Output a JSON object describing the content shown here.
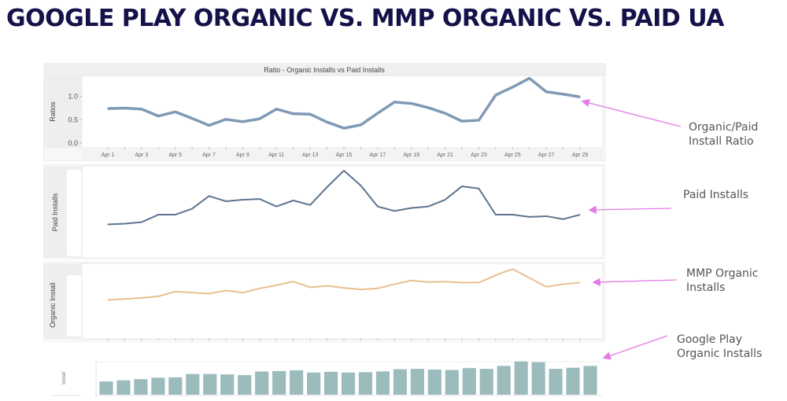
{
  "slide": {
    "title": "GOOGLE PLAY ORGANIC VS. MMP ORGANIC VS. PAID UA",
    "accent_color": "#15124a",
    "arrow_color": "#e27ae6"
  },
  "annotations": [
    {
      "line1": "Organic/Paid",
      "line2": "Install Ratio"
    },
    {
      "line1": "Paid Installs",
      "line2": ""
    },
    {
      "line1": "MMP Organic",
      "line2": "Installs"
    },
    {
      "line1": "Google Play",
      "line2": "Organic Installs"
    }
  ],
  "chart_data": [
    {
      "type": "line",
      "title": "Ratio - Organic Installs vs Paid Installs",
      "ylabel": "Ratios",
      "xlabel": "",
      "ylim": [
        0,
        1.45
      ],
      "yticks": [
        "0.0",
        "0.5",
        "1.0"
      ],
      "ytick_values": [
        0,
        0.5,
        1.0
      ],
      "x": [
        "Apr 1",
        "Apr 2",
        "Apr 3",
        "Apr 4",
        "Apr 5",
        "Apr 6",
        "Apr 7",
        "Apr 8",
        "Apr 9",
        "Apr 10",
        "Apr 11",
        "Apr 12",
        "Apr 13",
        "Apr 14",
        "Apr 15",
        "Apr 16",
        "Apr 17",
        "Apr 18",
        "Apr 19",
        "Apr 20",
        "Apr 21",
        "Apr 22",
        "Apr 23",
        "Apr 24",
        "Apr 25",
        "Apr 26",
        "Apr 27",
        "Apr 28",
        "Apr 29"
      ],
      "xtick_labels": [
        "Apr 1",
        "Apr 3",
        "Apr 5",
        "Apr 7",
        "Apr 9",
        "Apr 11",
        "Apr 13",
        "Apr 15",
        "Apr 17",
        "Apr 19",
        "Apr 21",
        "Apr 23",
        "Apr 25",
        "Apr 27",
        "Apr 29"
      ],
      "series": [
        {
          "name": "Ratio",
          "color": "#7f9ab5",
          "values": [
            0.74,
            0.75,
            0.73,
            0.58,
            0.67,
            0.53,
            0.38,
            0.51,
            0.46,
            0.52,
            0.73,
            0.63,
            0.62,
            0.45,
            0.32,
            0.39,
            0.64,
            0.88,
            0.85,
            0.76,
            0.64,
            0.47,
            0.49,
            1.03,
            1.2,
            1.39,
            1.1,
            1.05,
            0.99
          ]
        }
      ],
      "grid": false
    },
    {
      "type": "line",
      "title": "",
      "ylabel": "Paid Installs",
      "ylim": [
        0,
        100
      ],
      "x": [
        "Apr 1",
        "Apr 2",
        "Apr 3",
        "Apr 4",
        "Apr 5",
        "Apr 6",
        "Apr 7",
        "Apr 8",
        "Apr 9",
        "Apr 10",
        "Apr 11",
        "Apr 12",
        "Apr 13",
        "Apr 14",
        "Apr 15",
        "Apr 16",
        "Apr 17",
        "Apr 18",
        "Apr 19",
        "Apr 20",
        "Apr 21",
        "Apr 22",
        "Apr 23",
        "Apr 24",
        "Apr 25",
        "Apr 26",
        "Apr 27",
        "Apr 28",
        "Apr 29"
      ],
      "series": [
        {
          "name": "Paid Installs",
          "color": "#5d7590",
          "values": [
            28,
            29,
            31,
            41,
            41,
            49,
            66,
            59,
            61,
            62,
            52,
            60,
            54,
            78,
            100,
            80,
            52,
            46,
            50,
            52,
            61,
            79,
            76,
            41,
            41,
            38,
            39,
            35,
            41
          ]
        }
      ],
      "grid": false
    },
    {
      "type": "line",
      "title": "",
      "ylabel": "Organic Install",
      "ylim": [
        0,
        100
      ],
      "x": [
        "Apr 1",
        "Apr 2",
        "Apr 3",
        "Apr 4",
        "Apr 5",
        "Apr 6",
        "Apr 7",
        "Apr 8",
        "Apr 9",
        "Apr 10",
        "Apr 11",
        "Apr 12",
        "Apr 13",
        "Apr 14",
        "Apr 15",
        "Apr 16",
        "Apr 17",
        "Apr 18",
        "Apr 19",
        "Apr 20",
        "Apr 21",
        "Apr 22",
        "Apr 23",
        "Apr 24",
        "Apr 25",
        "Apr 26",
        "Apr 27",
        "Apr 28",
        "Apr 29"
      ],
      "series": [
        {
          "name": "MMP Organic Installs",
          "color": "#e8c08e",
          "values": [
            38,
            40,
            42,
            45,
            54,
            52,
            50,
            56,
            52,
            60,
            66,
            73,
            62,
            65,
            61,
            58,
            60,
            68,
            75,
            72,
            73,
            71,
            71,
            85,
            97,
            80,
            63,
            68,
            71
          ]
        }
      ],
      "grid": false
    },
    {
      "type": "bar",
      "title": "",
      "ylabel": "Install",
      "ylim": [
        0,
        100
      ],
      "categories": [
        "Apr 1",
        "Apr 2",
        "Apr 3",
        "Apr 4",
        "Apr 5",
        "Apr 6",
        "Apr 7",
        "Apr 8",
        "Apr 9",
        "Apr 10",
        "Apr 11",
        "Apr 12",
        "Apr 13",
        "Apr 14",
        "Apr 15",
        "Apr 16",
        "Apr 17",
        "Apr 18",
        "Apr 19",
        "Apr 20",
        "Apr 21",
        "Apr 22",
        "Apr 23",
        "Apr 24",
        "Apr 25",
        "Apr 26",
        "Apr 27",
        "Apr 28",
        "Apr 29"
      ],
      "series": [
        {
          "name": "Google Play Organic Installs",
          "color": "#9cbbbd",
          "values": [
            36,
            39,
            42,
            46,
            47,
            56,
            56,
            55,
            53,
            63,
            64,
            66,
            60,
            62,
            60,
            61,
            63,
            69,
            70,
            68,
            67,
            72,
            70,
            78,
            90,
            88,
            70,
            73,
            78
          ]
        }
      ],
      "grid": false
    }
  ]
}
